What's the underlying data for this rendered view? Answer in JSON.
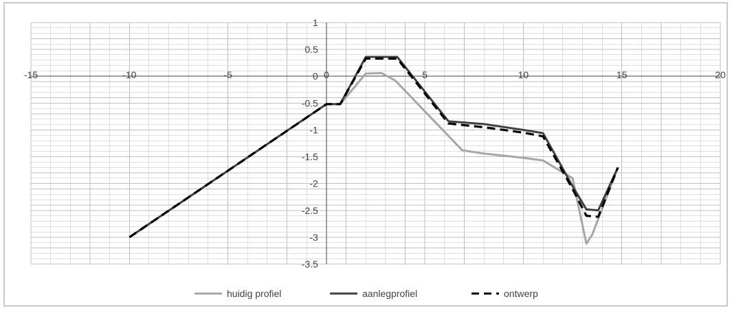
{
  "chart_data": {
    "type": "line",
    "title": "",
    "xlabel": "",
    "ylabel": "",
    "xlim": [
      -15,
      20
    ],
    "ylim": [
      -3.5,
      1
    ],
    "x_major_ticks": [
      -15,
      -10,
      -5,
      0,
      5,
      10,
      15,
      20
    ],
    "x_minor_step": 1,
    "y_major_ticks": [
      1,
      0.5,
      0,
      -0.5,
      -1,
      -1.5,
      -2,
      -2.5,
      -3,
      -3.5
    ],
    "y_minor_step": 0.1,
    "x_tick_labels": [
      "-15",
      "-10",
      "-5",
      "0",
      "5",
      "10",
      "15",
      "20"
    ],
    "y_tick_labels": [
      "1",
      "0.5",
      "0",
      "-0.5",
      "-1",
      "-1.5",
      "-2",
      "-2.5",
      "-3",
      "-3.5"
    ],
    "grid": true,
    "legend_position": "bottom",
    "colors": {
      "frame": "#c9c9c9",
      "grid": "#bfbfbf",
      "axis": "#404040",
      "text": "#404040"
    },
    "series": [
      {
        "name": "huidig profiel",
        "color": "#a6a6a6",
        "style": "solid",
        "x": [
          -10,
          0,
          0.7,
          2,
          2.8,
          3.5,
          6.9,
          8,
          10,
          11,
          12.5,
          13.2,
          13.5,
          14.8
        ],
        "y": [
          -3.0,
          -0.52,
          -0.52,
          0.05,
          0.06,
          -0.08,
          -1.38,
          -1.44,
          -1.52,
          -1.57,
          -1.9,
          -3.12,
          -2.95,
          -1.7
        ]
      },
      {
        "name": "aanlegprofiel",
        "color": "#404040",
        "style": "solid",
        "x": [
          -10,
          0,
          0.7,
          2,
          3.6,
          6.2,
          8,
          10,
          11,
          12.5,
          13.2,
          13.8,
          14.8
        ],
        "y": [
          -3.0,
          -0.52,
          -0.52,
          0.36,
          0.36,
          -0.84,
          -0.89,
          -1.0,
          -1.06,
          -2.05,
          -2.48,
          -2.5,
          -1.7
        ]
      },
      {
        "name": "ontwerp",
        "color": "#000000",
        "style": "dashed",
        "x": [
          -10,
          0,
          0.7,
          2,
          3.6,
          6.2,
          8,
          10,
          11,
          12.5,
          13.2,
          13.8,
          14.8
        ],
        "y": [
          -3.0,
          -0.52,
          -0.52,
          0.33,
          0.33,
          -0.88,
          -0.95,
          -1.05,
          -1.12,
          -2.1,
          -2.6,
          -2.62,
          -1.7
        ]
      }
    ]
  }
}
